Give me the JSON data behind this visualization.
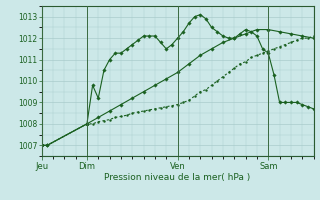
{
  "background_color": "#cce8e8",
  "grid_color": "#aacccc",
  "line_color": "#1a6020",
  "title": "Pression niveau de la mer( hPa )",
  "ylim": [
    1006.5,
    1013.5
  ],
  "yticks": [
    1007,
    1008,
    1009,
    1010,
    1011,
    1012,
    1013
  ],
  "day_labels": [
    "Jeu",
    "Dim",
    "Ven",
    "Sam"
  ],
  "day_positions": [
    0,
    16,
    48,
    80
  ],
  "xlim": [
    0,
    96
  ],
  "series1_x": [
    0,
    2,
    16,
    18,
    20,
    22,
    24,
    26,
    28,
    30,
    32,
    34,
    36,
    38,
    40,
    42,
    44,
    46,
    48,
    50,
    52,
    54,
    56,
    58,
    60,
    62,
    64,
    66,
    68,
    70,
    72,
    74,
    76,
    78,
    80,
    82,
    84,
    86,
    88,
    90,
    92,
    94,
    96
  ],
  "series1_y": [
    1007.0,
    1007.0,
    1008.0,
    1009.8,
    1009.2,
    1010.5,
    1011.0,
    1011.3,
    1011.3,
    1011.5,
    1011.7,
    1011.9,
    1012.1,
    1012.1,
    1012.1,
    1011.8,
    1011.5,
    1011.7,
    1012.0,
    1012.3,
    1012.7,
    1013.0,
    1013.1,
    1012.9,
    1012.5,
    1012.3,
    1012.1,
    1012.0,
    1012.0,
    1012.2,
    1012.4,
    1012.3,
    1012.1,
    1011.5,
    1011.3,
    1010.3,
    1009.0,
    1009.0,
    1009.0,
    1009.0,
    1008.9,
    1008.8,
    1008.7
  ],
  "series2_x": [
    0,
    2,
    16,
    18,
    20,
    22,
    24,
    26,
    28,
    30,
    32,
    34,
    36,
    38,
    40,
    42,
    44,
    46,
    48,
    50,
    52,
    54,
    56,
    58,
    60,
    62,
    64,
    66,
    68,
    70,
    72,
    74,
    76,
    78,
    80,
    82,
    84,
    86,
    88,
    90,
    92,
    94,
    96
  ],
  "series2_y": [
    1007.0,
    1007.0,
    1008.0,
    1008.0,
    1008.1,
    1008.15,
    1008.2,
    1008.3,
    1008.35,
    1008.4,
    1008.5,
    1008.55,
    1008.6,
    1008.65,
    1008.7,
    1008.75,
    1008.8,
    1008.85,
    1008.9,
    1009.0,
    1009.1,
    1009.3,
    1009.5,
    1009.6,
    1009.8,
    1010.0,
    1010.2,
    1010.4,
    1010.6,
    1010.8,
    1010.9,
    1011.1,
    1011.2,
    1011.3,
    1011.4,
    1011.5,
    1011.6,
    1011.7,
    1011.8,
    1011.9,
    1012.0,
    1012.0,
    1012.1
  ],
  "series3_x": [
    0,
    2,
    16,
    20,
    24,
    28,
    32,
    36,
    40,
    44,
    48,
    52,
    56,
    60,
    64,
    68,
    72,
    76,
    80,
    84,
    88,
    92,
    96
  ],
  "series3_y": [
    1007.0,
    1007.0,
    1008.0,
    1008.3,
    1008.6,
    1008.9,
    1009.2,
    1009.5,
    1009.8,
    1010.1,
    1010.4,
    1010.8,
    1011.2,
    1011.5,
    1011.8,
    1012.0,
    1012.2,
    1012.4,
    1012.4,
    1012.3,
    1012.2,
    1012.1,
    1012.0
  ]
}
